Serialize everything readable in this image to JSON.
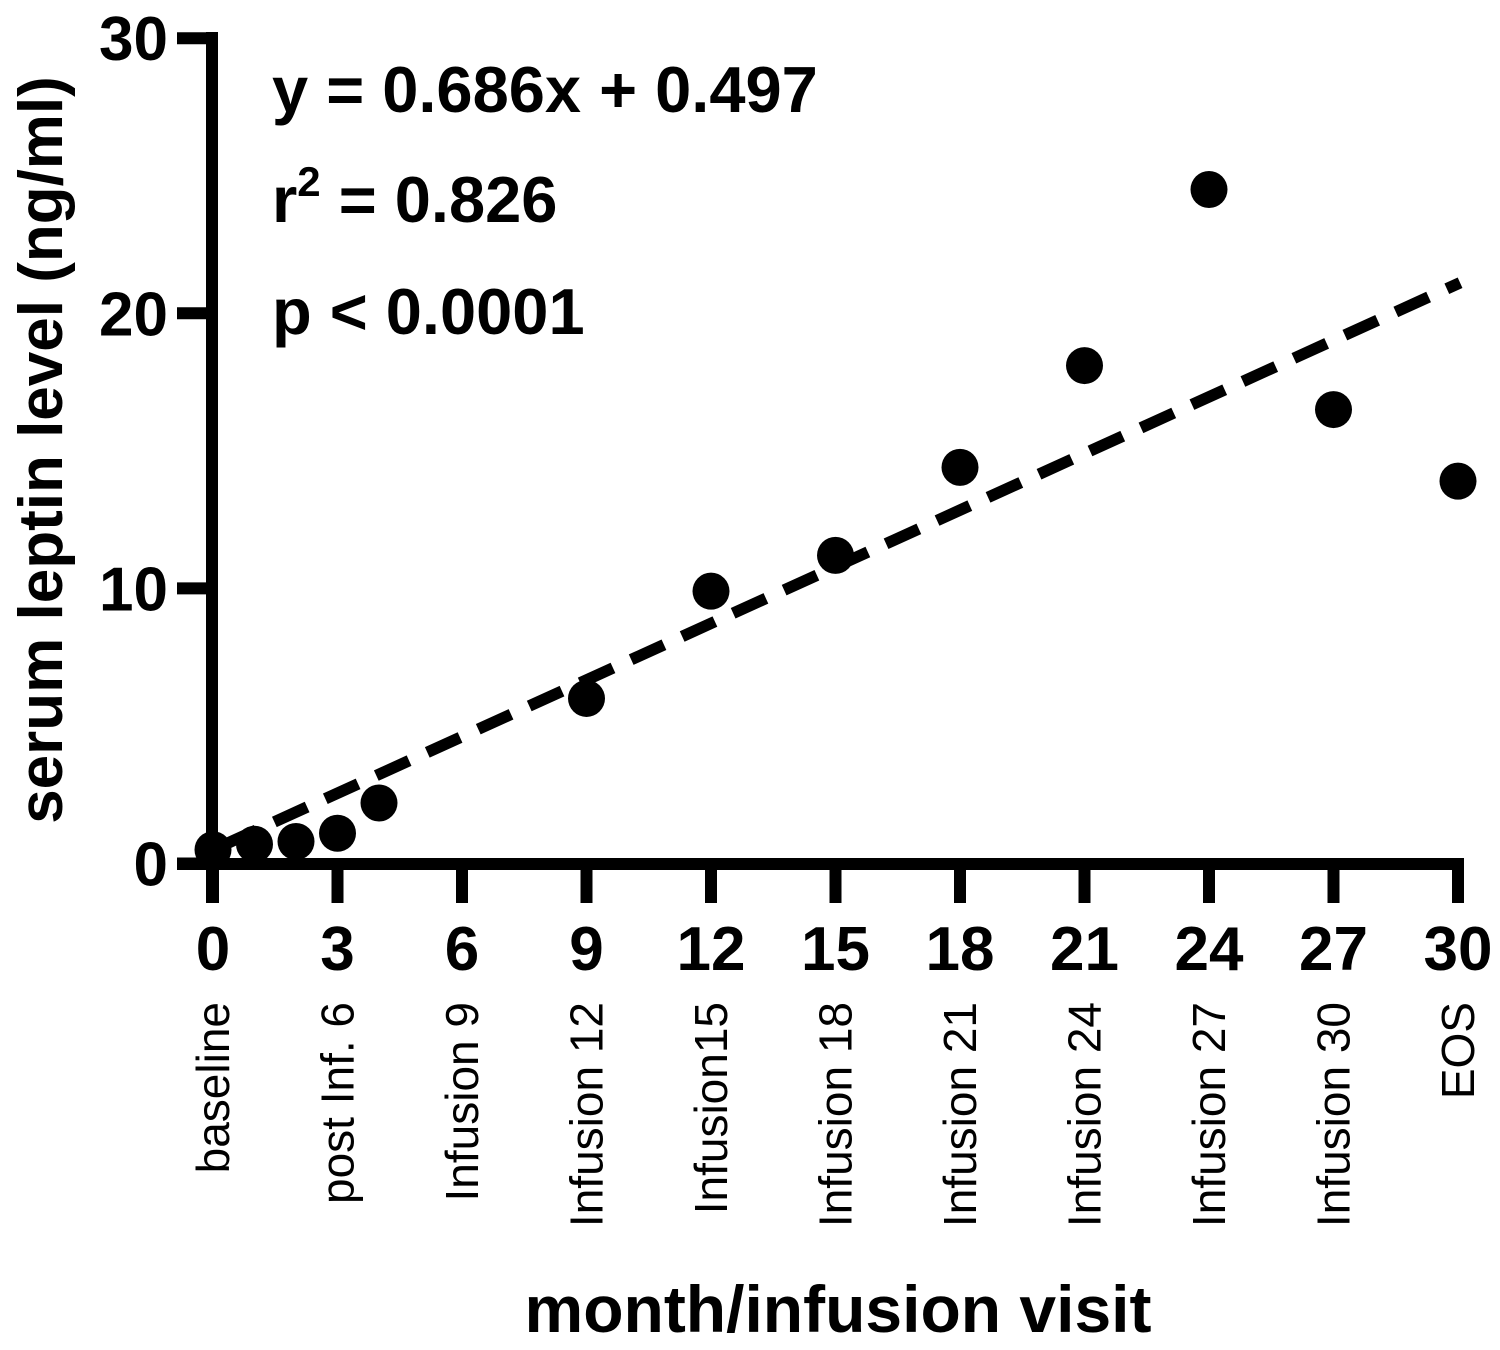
{
  "figure": {
    "background": "#ffffff",
    "ink": "#000000"
  },
  "annotation": {
    "equation": "y = 0.686x + 0.497",
    "r2_base": "r",
    "r2_sup": "2",
    "r2_rest": " = 0.826",
    "p_value": "p < 0.0001"
  },
  "chart_data": {
    "type": "scatter",
    "title": "",
    "xlabel": "month/infusion visit",
    "ylabel": "serum leptin level (ng/ml)",
    "xlim": [
      0,
      30
    ],
    "ylim": [
      0,
      30
    ],
    "grid": false,
    "legend": false,
    "marker_color": "#000000",
    "y_ticks": [
      0,
      10,
      20,
      30
    ],
    "x_ticks": [
      {
        "value": 0,
        "label": "0",
        "visit": "baseline"
      },
      {
        "value": 3,
        "label": "3",
        "visit": "post Inf. 6"
      },
      {
        "value": 6,
        "label": "6",
        "visit": "Infusion 9"
      },
      {
        "value": 9,
        "label": "9",
        "visit": "Infusion 12"
      },
      {
        "value": 12,
        "label": "12",
        "visit": "Infusion15"
      },
      {
        "value": 15,
        "label": "15",
        "visit": "Infusion 18"
      },
      {
        "value": 18,
        "label": "18",
        "visit": "Infusion 21"
      },
      {
        "value": 21,
        "label": "21",
        "visit": "Infusion 24"
      },
      {
        "value": 24,
        "label": "24",
        "visit": "Infusion 27"
      },
      {
        "value": 27,
        "label": "27",
        "visit": "Infusion 30"
      },
      {
        "value": 30,
        "label": "30",
        "visit": "EOS"
      }
    ],
    "points": [
      {
        "x": 0,
        "y": 0.5
      },
      {
        "x": 1,
        "y": 0.7
      },
      {
        "x": 2,
        "y": 0.8
      },
      {
        "x": 3,
        "y": 1.1
      },
      {
        "x": 4,
        "y": 2.2
      },
      {
        "x": 9,
        "y": 6.0
      },
      {
        "x": 12,
        "y": 9.9
      },
      {
        "x": 15,
        "y": 11.2
      },
      {
        "x": 18,
        "y": 14.4
      },
      {
        "x": 21,
        "y": 18.1
      },
      {
        "x": 24,
        "y": 24.5
      },
      {
        "x": 27,
        "y": 16.5
      },
      {
        "x": 30,
        "y": 13.9
      }
    ],
    "trendline": {
      "style": "dashed",
      "slope": 0.686,
      "intercept": 0.497,
      "x_start": 0.25,
      "x_end": 30.05,
      "r_squared": 0.826,
      "p_value": "p < 0.0001"
    }
  }
}
